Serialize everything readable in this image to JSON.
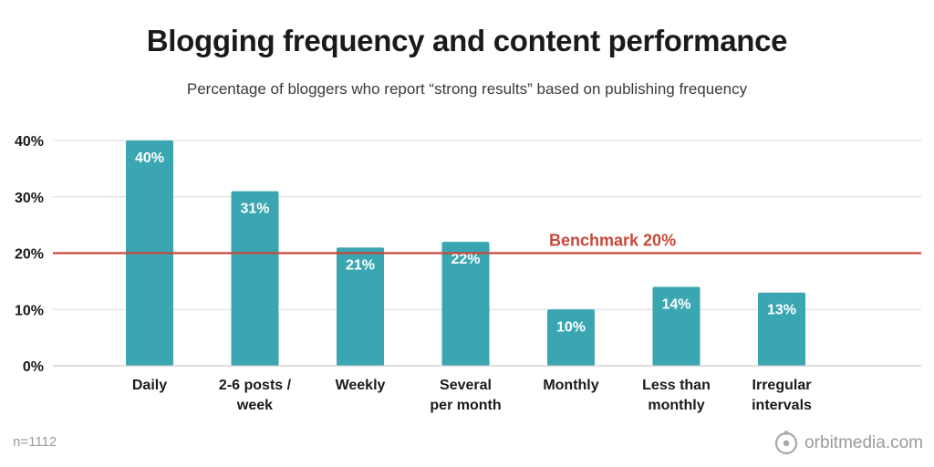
{
  "title": "Blogging frequency and content performance",
  "subtitle": "Percentage of bloggers who report “strong results” based on publishing frequency",
  "footnote": "n=1112",
  "brand": "orbitmedia.com",
  "colors": {
    "bar": "#3aa6b2",
    "benchmark": "#c8483a",
    "grid": "#d9d9d9",
    "text": "#1a1a1a"
  },
  "chart_data": {
    "type": "bar",
    "title": "Blogging frequency and content performance",
    "categories": [
      [
        "Daily"
      ],
      [
        "2-6 posts /",
        "week"
      ],
      [
        "Weekly"
      ],
      [
        "Several",
        "per month"
      ],
      [
        "Monthly"
      ],
      [
        "Less than",
        "monthly"
      ],
      [
        "Irregular",
        "intervals"
      ]
    ],
    "values": [
      40,
      31,
      21,
      22,
      10,
      14,
      13
    ],
    "value_labels": [
      "40%",
      "31%",
      "21%",
      "22%",
      "10%",
      "14%",
      "13%"
    ],
    "ylim": [
      0,
      40
    ],
    "yticks": [
      0,
      10,
      20,
      30,
      40
    ],
    "ytick_labels": [
      "0%",
      "10%",
      "20%",
      "30%",
      "40%"
    ],
    "xlabel": "",
    "ylabel": "",
    "benchmark": {
      "value": 20,
      "label": "Benchmark 20%"
    },
    "grid": true
  }
}
